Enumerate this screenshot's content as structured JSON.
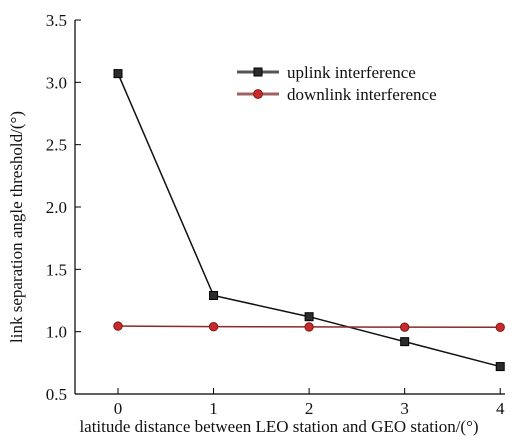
{
  "chart_data": {
    "type": "line",
    "title": "",
    "xlabel": "latitude distance between LEO station and GEO station/(°)",
    "ylabel": "link separation angle threshold/(°)",
    "x": [
      0,
      1,
      2,
      3,
      4
    ],
    "xticks": [
      "0",
      "1",
      "2",
      "3",
      "4"
    ],
    "yticks": [
      "0.5",
      "1.0",
      "1.5",
      "2.0",
      "2.5",
      "3.0",
      "3.5"
    ],
    "xlim": [
      -0.45,
      4.05
    ],
    "ylim": [
      0.5,
      3.5
    ],
    "grid": false,
    "legend_position": "top-right",
    "series": [
      {
        "name": "uplink interference",
        "values": [
          3.07,
          1.29,
          1.12,
          0.92,
          0.72
        ],
        "line_color": "#111111",
        "marker_fill": "#2b2b2b",
        "marker_stroke": "#000000",
        "marker": "square"
      },
      {
        "name": "downlink interference",
        "values": [
          1.045,
          1.04,
          1.038,
          1.036,
          1.035
        ],
        "line_color": "#8a2a2a",
        "marker_fill": "#cc2a2a",
        "marker_stroke": "#7a1a1a",
        "marker": "circle"
      }
    ]
  }
}
